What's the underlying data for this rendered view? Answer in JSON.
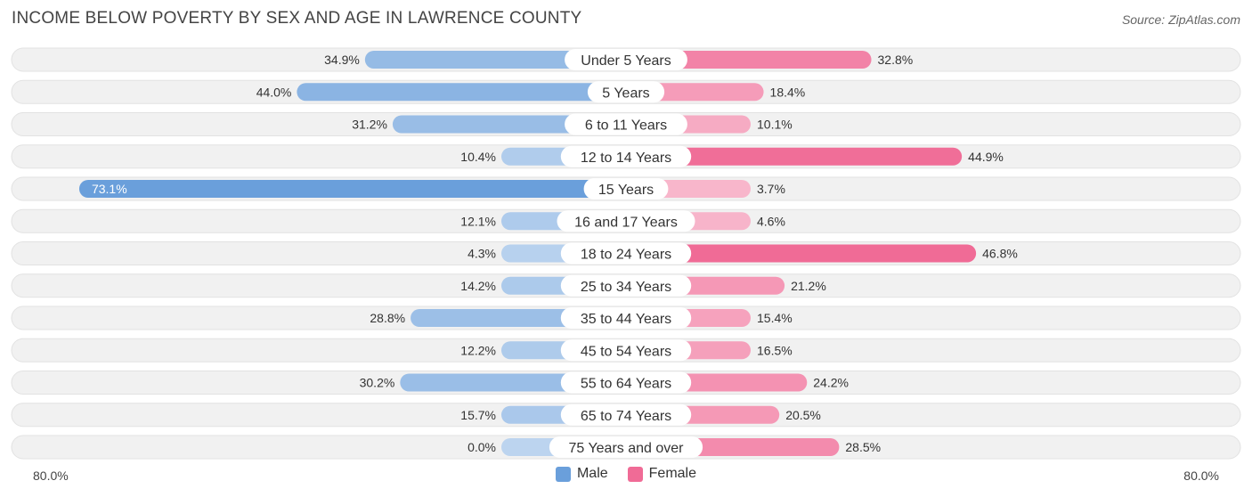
{
  "chart_data": {
    "type": "bar",
    "orientation": "horizontal-diverging",
    "title": "INCOME BELOW POVERTY BY SEX AND AGE IN LAWRENCE COUNTY",
    "source": "Source: ZipAtlas.com",
    "categories": [
      "Under 5 Years",
      "5 Years",
      "6 to 11 Years",
      "12 to 14 Years",
      "15 Years",
      "16 and 17 Years",
      "18 to 24 Years",
      "25 to 34 Years",
      "35 to 44 Years",
      "45 to 54 Years",
      "55 to 64 Years",
      "65 to 74 Years",
      "75 Years and over"
    ],
    "series": [
      {
        "name": "Male",
        "color": "#6a9fdb",
        "values": [
          34.9,
          44.0,
          31.2,
          10.4,
          73.1,
          12.1,
          4.3,
          14.2,
          28.8,
          12.2,
          30.2,
          15.7,
          0.0
        ]
      },
      {
        "name": "Female",
        "color": "#f06b96",
        "values": [
          32.8,
          18.4,
          10.1,
          44.9,
          3.7,
          4.6,
          46.8,
          21.2,
          15.4,
          16.5,
          24.2,
          20.5,
          28.5
        ]
      }
    ],
    "xlim": [
      -80,
      80
    ],
    "axis_left_label": "80.0%",
    "axis_right_label": "80.0%",
    "legend": [
      "Male",
      "Female"
    ],
    "legend_position": "bottom-center"
  }
}
